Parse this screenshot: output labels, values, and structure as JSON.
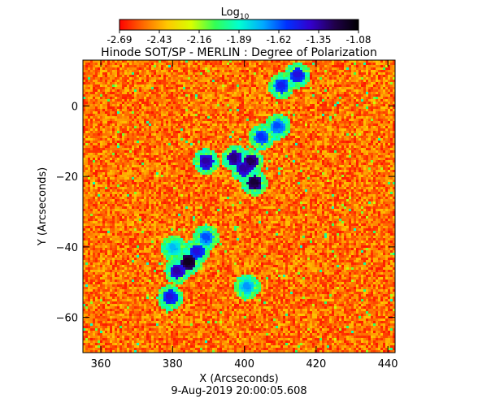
{
  "chart_data": {
    "type": "heatmap",
    "title": "Hinode SOT/SP - MERLIN : Degree of Polarization",
    "xlabel": "X (Arcseconds)",
    "ylabel": "Y (Arcseconds)",
    "date_label": "9-Aug-2019 20:00:05.608",
    "xlim": [
      355,
      442
    ],
    "ylim": [
      -70,
      13
    ],
    "xticks": [
      360,
      380,
      400,
      420,
      440
    ],
    "yticks": [
      0,
      -20,
      -40,
      -60
    ],
    "colorbar": {
      "label": "Log",
      "label_subscript": "10",
      "ticks": [
        "-2.69",
        "-2.43",
        "-2.16",
        "-1.89",
        "-1.62",
        "-1.35",
        "-1.08"
      ],
      "range": [
        -2.69,
        -1.08
      ],
      "colors": [
        "#ff0000",
        "#ff6a00",
        "#ffc800",
        "#d8ff00",
        "#33ff55",
        "#00ffd0",
        "#00aaff",
        "#0030ff",
        "#3300cc",
        "#20004a",
        "#000000"
      ]
    },
    "features": [
      {
        "x": 401.5,
        "y": -15.5,
        "level": -1.25
      },
      {
        "x": 397,
        "y": -14.5,
        "level": -1.3
      },
      {
        "x": 402.5,
        "y": -21.5,
        "level": -1.2
      },
      {
        "x": 399.5,
        "y": -17.5,
        "level": -1.35
      },
      {
        "x": 404.5,
        "y": -8.5,
        "level": -1.55
      },
      {
        "x": 389,
        "y": -15.5,
        "level": -1.35
      },
      {
        "x": 384,
        "y": -44,
        "level": -1.15
      },
      {
        "x": 381,
        "y": -46.5,
        "level": -1.35
      },
      {
        "x": 386.5,
        "y": -41,
        "level": -1.45
      },
      {
        "x": 379,
        "y": -54,
        "level": -1.45
      },
      {
        "x": 389,
        "y": -37,
        "level": -1.6
      },
      {
        "x": 414.5,
        "y": 9,
        "level": -1.45
      },
      {
        "x": 410,
        "y": 6,
        "level": -1.5
      },
      {
        "x": 409,
        "y": -5.5,
        "level": -1.6
      },
      {
        "x": 400.5,
        "y": -51,
        "level": -1.7
      },
      {
        "x": 380,
        "y": -40,
        "level": -1.75
      }
    ]
  }
}
